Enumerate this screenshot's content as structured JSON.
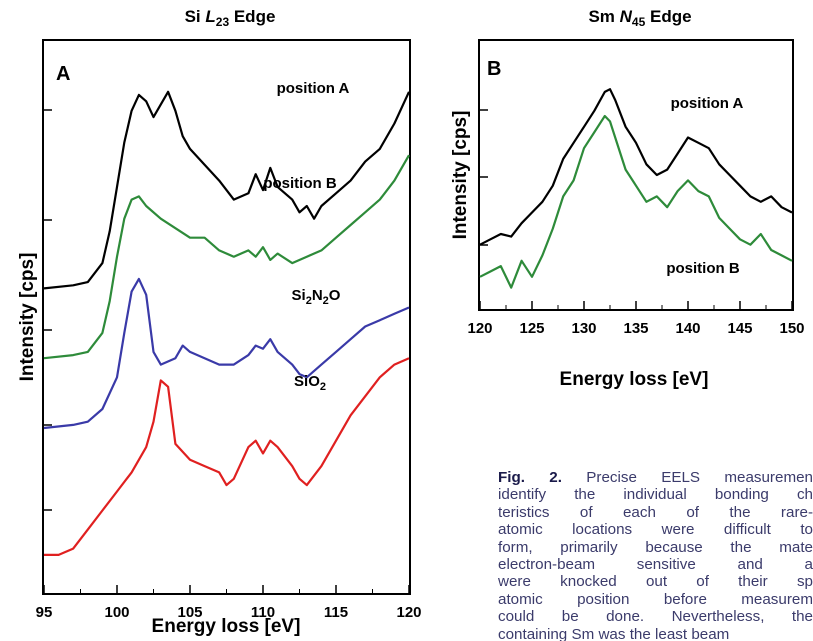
{
  "chart_data": [
    {
      "type": "line",
      "panel_label": "A",
      "title": "Si L23 Edge",
      "title_parts": {
        "main": "Si ",
        "italic": "L",
        "sub": "23",
        "rest": " Edge"
      },
      "xlabel": "Energy loss [eV]",
      "ylabel": "Intensity [cps]",
      "xlim": [
        95,
        120
      ],
      "x_ticks": [
        "95",
        "100",
        "105",
        "110",
        "115",
        "120"
      ],
      "y_ticks_labeled": false,
      "grid": false,
      "legend": "none",
      "series": [
        {
          "name": "position A",
          "color": "#000000",
          "x": [
            95,
            97,
            98,
            99,
            99.5,
            100,
            100.5,
            101,
            101.5,
            102,
            102.5,
            103,
            103.5,
            104,
            104.5,
            105,
            106,
            107,
            108,
            109,
            109.5,
            110,
            110.5,
            111,
            112,
            112.5,
            113,
            113.5,
            114,
            115,
            116,
            117,
            118,
            119,
            120
          ],
          "values": [
            0.34,
            0.35,
            0.36,
            0.42,
            0.52,
            0.66,
            0.8,
            0.9,
            0.95,
            0.93,
            0.88,
            0.92,
            0.96,
            0.9,
            0.82,
            0.78,
            0.73,
            0.68,
            0.62,
            0.64,
            0.7,
            0.65,
            0.72,
            0.66,
            0.62,
            0.58,
            0.6,
            0.56,
            0.6,
            0.64,
            0.68,
            0.74,
            0.78,
            0.86,
            0.96
          ]
        },
        {
          "name": "position B",
          "color": "#2e8b3a",
          "x": [
            95,
            97,
            98,
            99,
            99.5,
            100,
            100.5,
            101,
            101.5,
            102,
            103,
            104,
            105,
            106,
            107,
            108,
            109,
            109.5,
            110,
            110.5,
            111,
            112,
            113,
            114,
            115,
            116,
            117,
            118,
            119,
            120
          ],
          "values": [
            0.12,
            0.13,
            0.14,
            0.2,
            0.3,
            0.44,
            0.56,
            0.62,
            0.63,
            0.6,
            0.56,
            0.53,
            0.5,
            0.5,
            0.46,
            0.44,
            0.46,
            0.44,
            0.47,
            0.43,
            0.45,
            0.42,
            0.44,
            0.46,
            0.5,
            0.54,
            0.58,
            0.62,
            0.68,
            0.76
          ]
        },
        {
          "name": "Si2N2O",
          "color": "#3a3aa8",
          "x": [
            95,
            97,
            98,
            99,
            100,
            100.5,
            101,
            101.5,
            102,
            102.5,
            103,
            104,
            104.5,
            105,
            106,
            107,
            108,
            109,
            109.5,
            110,
            110.5,
            111,
            112,
            112.5,
            113,
            114,
            115,
            116,
            117,
            118,
            119,
            120
          ],
          "values": [
            -0.1,
            -0.09,
            -0.08,
            -0.04,
            0.06,
            0.2,
            0.33,
            0.37,
            0.32,
            0.14,
            0.1,
            0.12,
            0.16,
            0.14,
            0.12,
            0.1,
            0.1,
            0.13,
            0.16,
            0.15,
            0.18,
            0.14,
            0.1,
            0.07,
            0.06,
            0.1,
            0.14,
            0.18,
            0.22,
            0.24,
            0.26,
            0.28
          ]
        },
        {
          "name": "SiO2",
          "color": "#e02020",
          "x": [
            95,
            96,
            97,
            98,
            99,
            100,
            101,
            102,
            102.5,
            103,
            103.5,
            104,
            105,
            106,
            107,
            107.5,
            108,
            109,
            109.5,
            110,
            110.5,
            111,
            112,
            112.5,
            113,
            114,
            115,
            116,
            117,
            118,
            119,
            120
          ],
          "values": [
            -0.5,
            -0.5,
            -0.48,
            -0.42,
            -0.36,
            -0.3,
            -0.24,
            -0.16,
            -0.08,
            0.05,
            0.03,
            -0.15,
            -0.2,
            -0.22,
            -0.24,
            -0.28,
            -0.26,
            -0.16,
            -0.14,
            -0.18,
            -0.14,
            -0.16,
            -0.22,
            -0.26,
            -0.28,
            -0.22,
            -0.14,
            -0.06,
            0.0,
            0.06,
            0.1,
            0.12
          ]
        }
      ],
      "annotations": [
        {
          "text": "position A",
          "series": 0
        },
        {
          "text": "position B",
          "series": 1
        },
        {
          "text_main": "Si",
          "sub1": "2",
          "mid": "N",
          "sub2": "2",
          "tail": "O",
          "series": 2
        },
        {
          "text_main": "SiO",
          "sub1": "2",
          "series": 3
        }
      ]
    },
    {
      "type": "line",
      "panel_label": "B",
      "title": "Sm N45 Edge",
      "title_parts": {
        "main": "Sm ",
        "italic": "N",
        "sub": "45",
        "rest": " Edge"
      },
      "xlabel": "Energy loss [eV]",
      "ylabel": "Intensity [cps]",
      "xlim": [
        120,
        150
      ],
      "x_ticks": [
        "120",
        "125",
        "130",
        "135",
        "140",
        "145",
        "150"
      ],
      "y_ticks_labeled": false,
      "grid": false,
      "legend": "none",
      "series": [
        {
          "name": "position A",
          "color": "#000000",
          "x": [
            120,
            121,
            122,
            123,
            124,
            125,
            126,
            127,
            128,
            129,
            130,
            131,
            132,
            132.5,
            133,
            134,
            135,
            136,
            137,
            138,
            139,
            140,
            141,
            142,
            143,
            144,
            145,
            146,
            147,
            148,
            149,
            150
          ],
          "values": [
            0.42,
            0.44,
            0.46,
            0.45,
            0.5,
            0.54,
            0.58,
            0.64,
            0.74,
            0.8,
            0.86,
            0.92,
            0.99,
            1.0,
            0.96,
            0.86,
            0.8,
            0.72,
            0.68,
            0.7,
            0.76,
            0.82,
            0.8,
            0.78,
            0.72,
            0.68,
            0.64,
            0.6,
            0.58,
            0.6,
            0.56,
            0.54
          ]
        },
        {
          "name": "position B",
          "color": "#2e8b3a",
          "x": [
            120,
            121,
            122,
            123,
            124,
            125,
            126,
            127,
            128,
            129,
            130,
            131,
            132,
            132.5,
            133,
            134,
            135,
            136,
            137,
            138,
            139,
            140,
            141,
            142,
            143,
            144,
            145,
            146,
            147,
            148,
            149,
            150
          ],
          "values": [
            0.3,
            0.32,
            0.34,
            0.26,
            0.36,
            0.3,
            0.38,
            0.48,
            0.6,
            0.66,
            0.78,
            0.84,
            0.9,
            0.88,
            0.82,
            0.7,
            0.64,
            0.58,
            0.6,
            0.56,
            0.62,
            0.66,
            0.62,
            0.6,
            0.52,
            0.48,
            0.44,
            0.42,
            0.46,
            0.4,
            0.38,
            0.36
          ]
        }
      ],
      "annotations": [
        {
          "text": "position A",
          "series": 0
        },
        {
          "text": "position B",
          "series": 1
        }
      ]
    }
  ],
  "caption": {
    "label": "Fig. 2.",
    "lines": [
      " Precise EELS measuremen",
      "identify the individual bonding ch",
      "teristics of each of the rare-",
      "atomic locations were difficult to",
      "form, primarily because the mate",
      "electron-beam sensitive and a",
      "were knocked out of their sp",
      "atomic position before measurem",
      "could be done. Nevertheless, the",
      "containing Sm was the least beam"
    ]
  }
}
